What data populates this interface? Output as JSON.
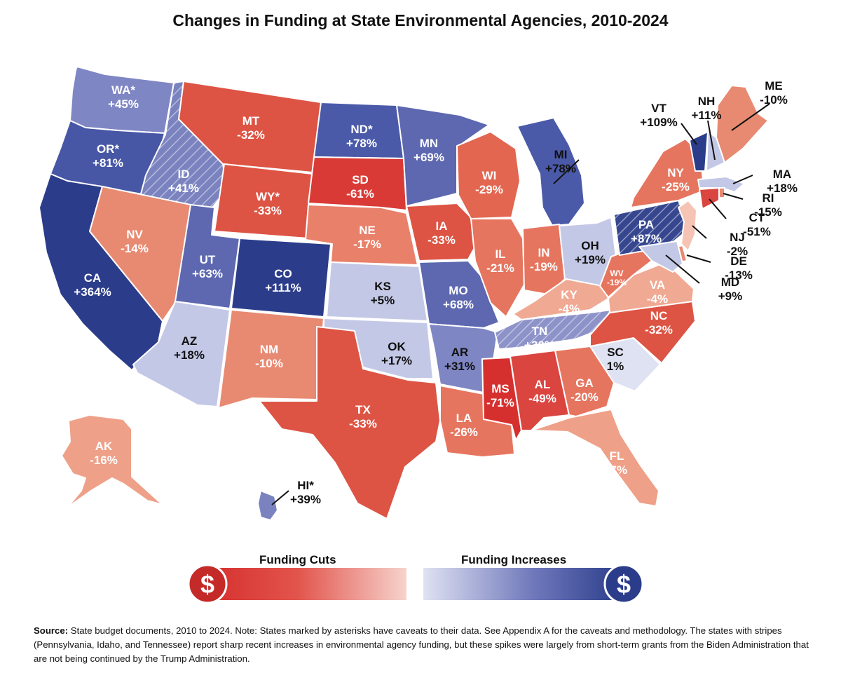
{
  "title": "Changes in Funding at State Environmental Agencies, 2010-2024",
  "legend": {
    "cuts_label": "Funding Cuts",
    "increases_label": "Funding Increases",
    "cuts_icon_symbol": "$",
    "increases_icon_symbol": "$",
    "cut_color": "#d93a36",
    "increase_color": "#2f3f8f"
  },
  "source": {
    "label": "Source:",
    "text": " State budget documents, 2010 to 2024. Note: States marked by asterisks have caveats to their data. See Appendix A for the caveats and methodology. The states with stripes (Pennsylvania, Idaho, and Tennessee) report sharp recent increases in environmental agency funding, but these spikes were largely from short-term grants from the Biden Administration that are not being continued by the Trump Administration."
  },
  "states": [
    {
      "id": "WA",
      "name": "WA*",
      "value": "+45%",
      "color": "#7f86c4"
    },
    {
      "id": "OR",
      "name": "OR*",
      "value": "+81%",
      "color": "#4757a6"
    },
    {
      "id": "CA",
      "name": "CA",
      "value": "+364%",
      "color": "#2b3c8a"
    },
    {
      "id": "ID",
      "name": "ID",
      "value": "+41%",
      "color": "#7a83bf",
      "striped": true
    },
    {
      "id": "NV",
      "name": "NV",
      "value": "-14%",
      "color": "#e88a72"
    },
    {
      "id": "AZ",
      "name": "AZ",
      "value": "+18%",
      "color": "#c3c8e6"
    },
    {
      "id": "UT",
      "name": "UT",
      "value": "+63%",
      "color": "#5d68b0"
    },
    {
      "id": "MT",
      "name": "MT",
      "value": "-32%",
      "color": "#dd5444"
    },
    {
      "id": "WY",
      "name": "WY*",
      "value": "-33%",
      "color": "#dd5444"
    },
    {
      "id": "CO",
      "name": "CO",
      "value": "+111%",
      "color": "#2b3c8a"
    },
    {
      "id": "NM",
      "name": "NM",
      "value": "-10%",
      "color": "#e88a72"
    },
    {
      "id": "ND",
      "name": "ND*",
      "value": "+78%",
      "color": "#4b5aa8"
    },
    {
      "id": "SD",
      "name": "SD",
      "value": "-61%",
      "color": "#d93a36"
    },
    {
      "id": "NE",
      "name": "NE",
      "value": "-17%",
      "color": "#e8806a"
    },
    {
      "id": "KS",
      "name": "KS",
      "value": "+5%",
      "color": "#c3c8e6"
    },
    {
      "id": "OK",
      "name": "OK",
      "value": "+17%",
      "color": "#c3c8e6"
    },
    {
      "id": "TX",
      "name": "TX",
      "value": "-33%",
      "color": "#dd5444"
    },
    {
      "id": "MN",
      "name": "MN",
      "value": "+69%",
      "color": "#5d68b0"
    },
    {
      "id": "IA",
      "name": "IA",
      "value": "-33%",
      "color": "#dd5444"
    },
    {
      "id": "MO",
      "name": "MO",
      "value": "+68%",
      "color": "#5d68b0"
    },
    {
      "id": "AR",
      "name": "AR",
      "value": "+31%",
      "color": "#7f86c4"
    },
    {
      "id": "LA",
      "name": "LA",
      "value": "-26%",
      "color": "#e6755f"
    },
    {
      "id": "WI",
      "name": "WI",
      "value": "-29%",
      "color": "#e26650"
    },
    {
      "id": "IL",
      "name": "IL",
      "value": "-21%",
      "color": "#e6755f"
    },
    {
      "id": "MI",
      "name": "MI",
      "value": "+78%",
      "color": "#4b5aa8"
    },
    {
      "id": "IN",
      "name": "IN",
      "value": "-19%",
      "color": "#e6755f"
    },
    {
      "id": "OH",
      "name": "OH",
      "value": "+19%",
      "color": "#c3c8e6"
    },
    {
      "id": "KY",
      "name": "KY",
      "value": "-4%",
      "color": "#f0a992"
    },
    {
      "id": "TN",
      "name": "TN",
      "value": "+30%",
      "color": "#8d93c9",
      "striped": true
    },
    {
      "id": "MS",
      "name": "MS",
      "value": "-71%",
      "color": "#d6302e"
    },
    {
      "id": "AL",
      "name": "AL",
      "value": "-49%",
      "color": "#da4540"
    },
    {
      "id": "GA",
      "name": "GA",
      "value": "-20%",
      "color": "#e6755f"
    },
    {
      "id": "FL",
      "name": "FL",
      "value": "-7%",
      "color": "#efa088"
    },
    {
      "id": "SC",
      "name": "SC",
      "value": "1%",
      "color": "#dfe2f2"
    },
    {
      "id": "NC",
      "name": "NC",
      "value": "-32%",
      "color": "#dd5444"
    },
    {
      "id": "VA",
      "name": "VA",
      "value": "-4%",
      "color": "#f0a992"
    },
    {
      "id": "WV",
      "name": "WV",
      "value": "-19%",
      "color": "#e6755f"
    },
    {
      "id": "PA",
      "name": "PA",
      "value": "+87%",
      "color": "#36468f",
      "striped": true
    },
    {
      "id": "NY",
      "name": "NY",
      "value": "-25%",
      "color": "#e6755f"
    },
    {
      "id": "VT",
      "name": "VT",
      "value": "+109%",
      "color": "#2b3c8a"
    },
    {
      "id": "NH",
      "name": "NH",
      "value": "+11%",
      "color": "#c3c8e6"
    },
    {
      "id": "ME",
      "name": "ME",
      "value": "-10%",
      "color": "#e88a72"
    },
    {
      "id": "MA",
      "name": "MA",
      "value": "+18%",
      "color": "#c3c8e6"
    },
    {
      "id": "RI",
      "name": "RI",
      "value": "-15%",
      "color": "#e88a72"
    },
    {
      "id": "CT",
      "name": "CT",
      "value": "-51%",
      "color": "#da4540"
    },
    {
      "id": "NJ",
      "name": "NJ",
      "value": "-2%",
      "color": "#f5c4b4"
    },
    {
      "id": "DE",
      "name": "DE",
      "value": "-13%",
      "color": "#e88a72"
    },
    {
      "id": "MD",
      "name": "MD",
      "value": "+9%",
      "color": "#c3c8e6"
    },
    {
      "id": "AK",
      "name": "AK",
      "value": "-16%",
      "color": "#efa088"
    },
    {
      "id": "HI",
      "name": "HI*",
      "value": "+39%",
      "color": "#7a83bf"
    }
  ]
}
